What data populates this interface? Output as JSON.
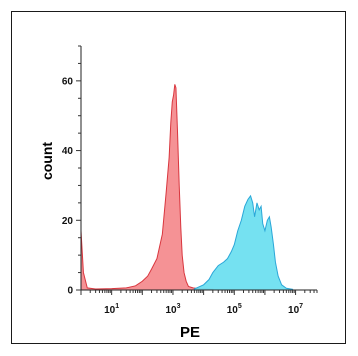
{
  "chart_data": {
    "type": "area",
    "title": "",
    "xlabel": "PE",
    "ylabel": "count",
    "x_scale": "log10",
    "xlim": [
      1,
      50000000
    ],
    "ylim": [
      0,
      70
    ],
    "x_ticks": [
      {
        "value": 10,
        "base": "10",
        "exp": "1"
      },
      {
        "value": 1000,
        "base": "10",
        "exp": "3"
      },
      {
        "value": 100000,
        "base": "10",
        "exp": "5"
      },
      {
        "value": 10000000,
        "base": "10",
        "exp": "7"
      }
    ],
    "y_ticks": [
      0,
      20,
      40,
      60
    ],
    "series": [
      {
        "color": "#f4868a",
        "stroke": "#d9363e",
        "points": [
          [
            1,
            17
          ],
          [
            1.2,
            5
          ],
          [
            1.6,
            0.6
          ],
          [
            3,
            0.3
          ],
          [
            10,
            0.4
          ],
          [
            30,
            0.6
          ],
          [
            60,
            1.2
          ],
          [
            100,
            2.5
          ],
          [
            150,
            4
          ],
          [
            200,
            6
          ],
          [
            300,
            9
          ],
          [
            450,
            16
          ],
          [
            600,
            28
          ],
          [
            750,
            38
          ],
          [
            850,
            48
          ],
          [
            950,
            54
          ],
          [
            1050,
            56
          ],
          [
            1150,
            59
          ],
          [
            1250,
            58
          ],
          [
            1400,
            46
          ],
          [
            1600,
            30
          ],
          [
            1800,
            18
          ],
          [
            2000,
            10
          ],
          [
            2300,
            5
          ],
          [
            2700,
            2.5
          ],
          [
            3200,
            1
          ],
          [
            4500,
            0.6
          ],
          [
            8000,
            0.3
          ],
          [
            20000,
            0.2
          ]
        ]
      },
      {
        "color": "#66def0",
        "stroke": "#2aa7d8",
        "points": [
          [
            5000,
            0.3
          ],
          [
            10000,
            1.5
          ],
          [
            15000,
            3
          ],
          [
            20000,
            5
          ],
          [
            30000,
            7
          ],
          [
            45000,
            8
          ],
          [
            60000,
            9
          ],
          [
            80000,
            11
          ],
          [
            100000,
            13
          ],
          [
            130000,
            17
          ],
          [
            170000,
            20
          ],
          [
            220000,
            24
          ],
          [
            280000,
            26
          ],
          [
            340000,
            27
          ],
          [
            400000,
            25
          ],
          [
            460000,
            21
          ],
          [
            550000,
            25
          ],
          [
            650000,
            23
          ],
          [
            750000,
            24
          ],
          [
            850000,
            19
          ],
          [
            1000000,
            17
          ],
          [
            1200000,
            20
          ],
          [
            1400000,
            21
          ],
          [
            1600000,
            18
          ],
          [
            1900000,
            13
          ],
          [
            2200000,
            8
          ],
          [
            2700000,
            4
          ],
          [
            3500000,
            1.5
          ],
          [
            5000000,
            0.5
          ],
          [
            8000000,
            0.2
          ]
        ]
      }
    ],
    "grid": false,
    "legend": "none"
  }
}
